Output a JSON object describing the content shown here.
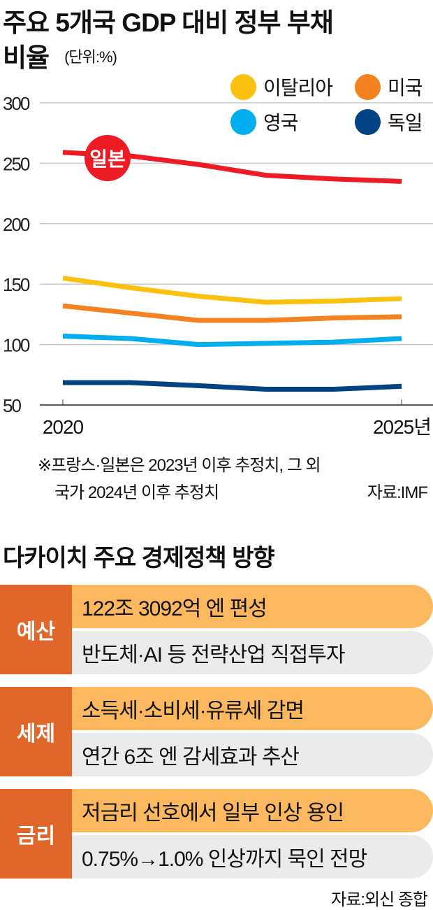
{
  "chart_data": {
    "type": "line",
    "title": "주요 5개국 GDP 대비 정부 부채 비율",
    "unit": "(단위:%)",
    "x": [
      2020,
      2021,
      2022,
      2023,
      2024,
      2025
    ],
    "x_tick_labels": [
      "2020",
      "2025년"
    ],
    "ylim": [
      50,
      300
    ],
    "y_ticks": [
      300,
      250,
      200,
      150,
      100,
      50
    ],
    "grid": true,
    "legend_placement": "top-right",
    "series": [
      {
        "name": "일본",
        "color": "#ed1c24",
        "values": [
          259,
          256,
          249,
          240,
          237,
          235
        ]
      },
      {
        "name": "이탈리아",
        "color": "#fcc10f",
        "values": [
          155,
          147,
          140,
          135,
          136,
          138
        ]
      },
      {
        "name": "미국",
        "color": "#f58220",
        "values": [
          132,
          126,
          120,
          120,
          122,
          123
        ]
      },
      {
        "name": "영국",
        "color": "#00aeef",
        "values": [
          107,
          105,
          100,
          101,
          102,
          105
        ]
      },
      {
        "name": "독일",
        "color": "#004282",
        "values": [
          68.5,
          68.5,
          66,
          63,
          63,
          65.5
        ]
      }
    ],
    "annotation": "일본"
  },
  "title_line1": "주요 5개국 GDP 대비 정부 부채",
  "title_line2": "비율",
  "notes": {
    "line1": "※프랑스·일본은 2023년 이후 추정치, 그 외",
    "line2": "국가 2024년 이후 추정치",
    "source": "자료:IMF"
  },
  "policy": {
    "title": "다카이치 주요 경제정책 방향",
    "rows": [
      {
        "category": "예산",
        "main": "122조 3092억 엔 편성",
        "detail": "반도체·AI 등 전략산업 직접투자"
      },
      {
        "category": "세제",
        "main": "소득세·소비세·유류세 감면",
        "detail": "연간 6조 엔 감세효과 추산"
      },
      {
        "category": "금리",
        "main": "저금리 선호에서 일부 인상 용인",
        "detail": "0.75%→1.0% 인상까지 묵인 전망"
      }
    ],
    "source": "자료:외신 종합"
  }
}
